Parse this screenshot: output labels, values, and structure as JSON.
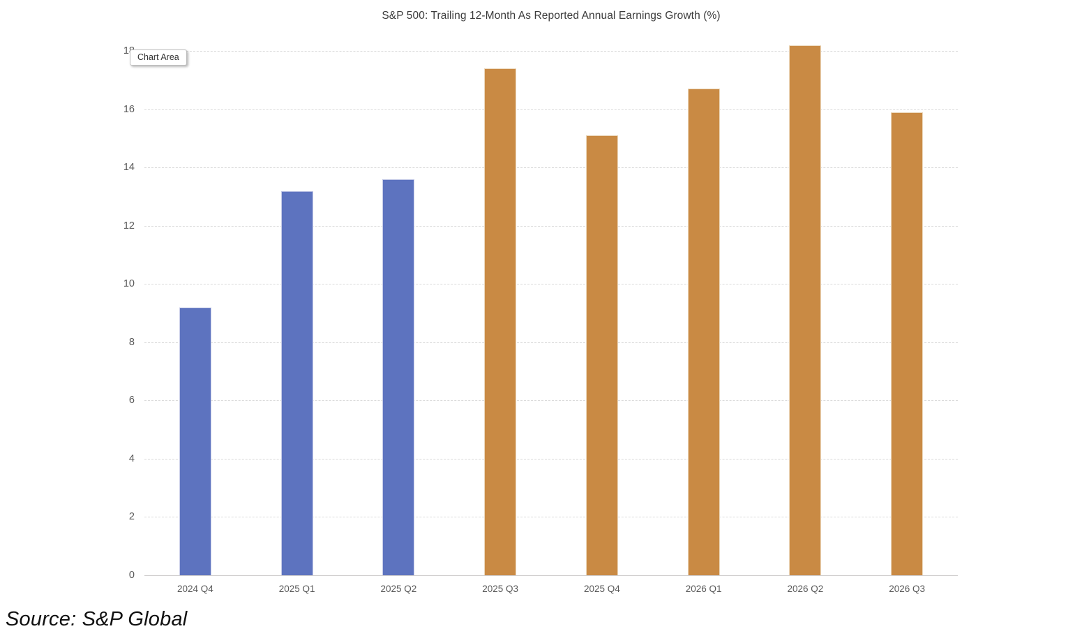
{
  "title": "S&P 500: Trailing 12-Month As Reported Annual Earnings Growth (%)",
  "tooltip_label": "Chart Area",
  "source_note": "Source: S&P Global",
  "chart_data": {
    "type": "bar",
    "title": "S&P 500: Trailing 12-Month As Reported Annual Earnings Growth (%)",
    "categories": [
      "2024 Q4",
      "2025 Q1",
      "2025 Q2",
      "2025 Q3",
      "2025 Q4",
      "2026 Q1",
      "2026 Q2",
      "2026 Q3"
    ],
    "values": [
      9.2,
      13.2,
      13.6,
      17.4,
      15.1,
      16.7,
      18.2,
      15.9
    ],
    "bar_colors": [
      "#5d73bf",
      "#5d73bf",
      "#5d73bf",
      "#c98a44",
      "#c98a44",
      "#c98a44",
      "#c98a44",
      "#c98a44"
    ],
    "bar_edge_colors": [
      "#c7cce8",
      "#c7cce8",
      "#c7cce8",
      "#ecd9be",
      "#ecd9be",
      "#ecd9be",
      "#ecd9be",
      "#ecd9be"
    ],
    "xlabel": "",
    "ylabel": "",
    "ylim": [
      0,
      18
    ],
    "ytick_step": 2,
    "ytick_labels": [
      "0",
      "2",
      "4",
      "6",
      "8",
      "10",
      "12",
      "14",
      "16",
      "18"
    ],
    "grid": "horizontal-dashed",
    "legend": "none",
    "gridline_color": "#dadada",
    "axis_line_color": "#d0cece",
    "tick_label_color": "#595959",
    "title_color": "#3b3b3b"
  }
}
